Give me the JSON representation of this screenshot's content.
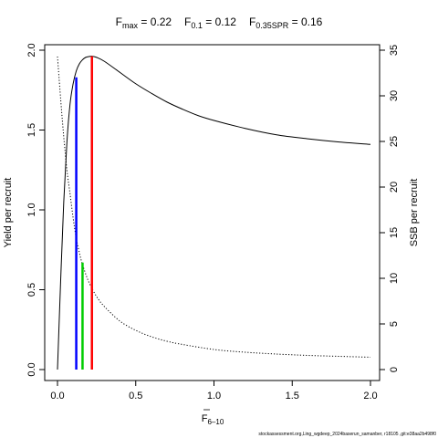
{
  "title": {
    "fmax_main": "F",
    "fmax_sub": "max",
    "fmax_val": " = 0.22",
    "f01_main": "F",
    "f01_sub": "0.1",
    "f01_val": " = 0.12",
    "fspr_main": "F",
    "fspr_sub": "0.35SPR",
    "fspr_val": " = 0.16"
  },
  "footer": "stockassessment.org,Ling_wgdeep_2024baserun_samanber, r18105 ,git:e38aa2b498f0",
  "chart_data": {
    "type": "line",
    "xlabel_main": "F",
    "xlabel_sub": "6–10",
    "ylabel_left": "Yield per recruit",
    "ylabel_right": "SSB per recruit",
    "xlim": [
      0,
      2.05
    ],
    "ylim_left": [
      0,
      2.0
    ],
    "ylim_right": [
      0,
      35
    ],
    "x_ticks": [
      0,
      0.5,
      1.0,
      1.5,
      2.0
    ],
    "x_tick_labels": [
      "0.0",
      "0.5",
      "1.0",
      "1.5",
      "2.0"
    ],
    "y_left_ticks": [
      0,
      0.5,
      1.0,
      1.5,
      2.0
    ],
    "y_left_tick_labels": [
      "0.0",
      "0.5",
      "1.0",
      "1.5",
      "2.0"
    ],
    "y_right_ticks": [
      0,
      5,
      10,
      15,
      20,
      25,
      30,
      35
    ],
    "y_right_tick_labels": [
      "0",
      "5",
      "10",
      "15",
      "20",
      "25",
      "30",
      "35"
    ],
    "series": [
      {
        "axis": "left",
        "style": "solid",
        "color": "#000000",
        "x": [
          0,
          0.02,
          0.04,
          0.06,
          0.08,
          0.1,
          0.12,
          0.14,
          0.16,
          0.18,
          0.2,
          0.22,
          0.25,
          0.3,
          0.4,
          0.5,
          0.6,
          0.7,
          0.8,
          0.9,
          1.0,
          1.2,
          1.4,
          1.6,
          1.8,
          2.0
        ],
        "y": [
          0,
          0.55,
          1.05,
          1.42,
          1.66,
          1.79,
          1.87,
          1.915,
          1.94,
          1.955,
          1.96,
          1.962,
          1.955,
          1.93,
          1.86,
          1.79,
          1.73,
          1.675,
          1.63,
          1.59,
          1.56,
          1.51,
          1.47,
          1.445,
          1.425,
          1.41
        ]
      },
      {
        "axis": "right",
        "style": "dotted",
        "color": "#000000",
        "x": [
          0,
          0.02,
          0.04,
          0.06,
          0.08,
          0.1,
          0.12,
          0.14,
          0.16,
          0.2,
          0.25,
          0.3,
          0.4,
          0.5,
          0.6,
          0.7,
          0.8,
          1.0,
          1.2,
          1.4,
          1.6,
          1.8,
          2.0
        ],
        "y": [
          34.3,
          29.7,
          25.5,
          21.9,
          19.3,
          16.6,
          14.4,
          12.8,
          11.5,
          9.6,
          8.0,
          6.9,
          5.3,
          4.3,
          3.6,
          3.1,
          2.75,
          2.2,
          1.9,
          1.7,
          1.55,
          1.45,
          1.35
        ]
      }
    ],
    "reference_lines": [
      {
        "name": "F0.1",
        "x": 0.12,
        "y": 1.83,
        "axis": "left",
        "color": "#0000ff"
      },
      {
        "name": "F0.35SPR",
        "x": 0.16,
        "y": 0.67,
        "axis": "left",
        "color": "#00cc00"
      },
      {
        "name": "Fmax",
        "x": 0.22,
        "y": 1.962,
        "axis": "left",
        "color": "#ff0000"
      }
    ]
  }
}
